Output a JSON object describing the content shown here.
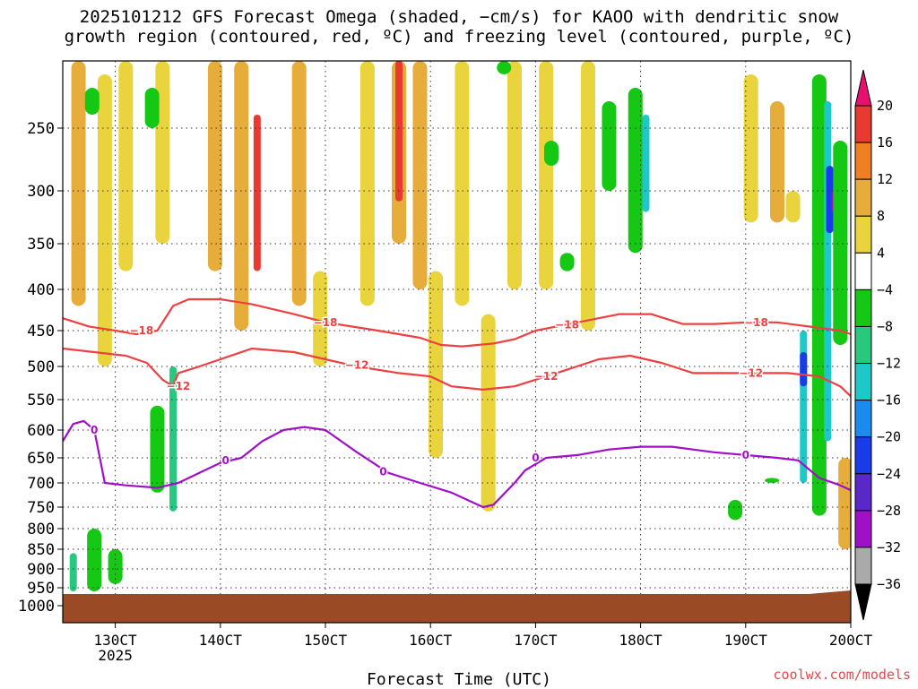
{
  "title_line1": "2025101212 GFS Forecast Omega (shaded, −cm/s) for KAOO with dendritic snow",
  "title_line2": "growth region (contoured, red, ºC) and freezing level (contoured, purple, ºC)",
  "credit": "coolwx.com/models",
  "chart_data": {
    "type": "heatmap",
    "title": "2025101212 GFS Forecast Omega (shaded, −cm/s) for KAOO with dendritic snow growth region (contoured, red, ºC) and freezing level (contoured, purple, ºC)",
    "xlabel": "Forecast Time (UTC)",
    "ylabel": "",
    "x_ticks": [
      "130CT",
      "140CT",
      "150CT",
      "160CT",
      "170CT",
      "180CT",
      "190CT",
      "200CT"
    ],
    "x_tick_day": [
      13,
      14,
      15,
      16,
      17,
      18,
      19,
      20
    ],
    "x_sublabel": "2025",
    "xlim_day": [
      12.5,
      20.0
    ],
    "y_ticks": [
      250,
      300,
      350,
      400,
      450,
      500,
      550,
      600,
      650,
      700,
      750,
      800,
      850,
      900,
      950,
      1000
    ],
    "ylim": [
      200,
      1000
    ],
    "colorbar": {
      "labels": [
        "20",
        "16",
        "12",
        "8",
        "4",
        "−4",
        "−8",
        "−12",
        "−16",
        "−20",
        "−24",
        "−28",
        "−32",
        "−36"
      ],
      "colors": [
        "#e8106f",
        "#e83a30",
        "#f07e22",
        "#e6ad3a",
        "#ead43d",
        "#ffffff",
        "#14c814",
        "#28c87f",
        "#1ec8c8",
        "#1a8cf0",
        "#1a3ce8",
        "#5a28c8",
        "#a010c8",
        "#aaaaaa",
        "#000000"
      ]
    },
    "contours": [
      {
        "name": "−18",
        "color": "#ee4040",
        "points": [
          [
            12.5,
            435
          ],
          [
            12.75,
            445
          ],
          [
            13.0,
            450
          ],
          [
            13.2,
            455
          ],
          [
            13.4,
            450
          ],
          [
            13.55,
            420
          ],
          [
            13.7,
            412
          ],
          [
            14.0,
            412
          ],
          [
            14.3,
            418
          ],
          [
            14.7,
            430
          ],
          [
            15.0,
            440
          ],
          [
            15.5,
            450
          ],
          [
            15.9,
            460
          ],
          [
            16.1,
            470
          ],
          [
            16.3,
            472
          ],
          [
            16.6,
            468
          ],
          [
            16.8,
            462
          ],
          [
            17.0,
            450
          ],
          [
            17.2,
            445
          ],
          [
            17.4,
            440
          ],
          [
            17.6,
            435
          ],
          [
            17.8,
            430
          ],
          [
            18.1,
            430
          ],
          [
            18.4,
            442
          ],
          [
            18.7,
            442
          ],
          [
            19.0,
            440
          ],
          [
            19.3,
            440
          ],
          [
            19.6,
            445
          ],
          [
            19.9,
            450
          ],
          [
            20.0,
            455
          ]
        ]
      },
      {
        "name": "−12",
        "color": "#ee4040",
        "points": [
          [
            12.5,
            475
          ],
          [
            12.8,
            480
          ],
          [
            13.1,
            485
          ],
          [
            13.3,
            495
          ],
          [
            13.45,
            520
          ],
          [
            13.55,
            530
          ],
          [
            13.6,
            510
          ],
          [
            13.8,
            500
          ],
          [
            14.0,
            490
          ],
          [
            14.3,
            475
          ],
          [
            14.7,
            480
          ],
          [
            15.0,
            490
          ],
          [
            15.3,
            500
          ],
          [
            15.7,
            510
          ],
          [
            16.0,
            515
          ],
          [
            16.2,
            530
          ],
          [
            16.5,
            535
          ],
          [
            16.8,
            530
          ],
          [
            17.0,
            520
          ],
          [
            17.2,
            510
          ],
          [
            17.6,
            490
          ],
          [
            17.9,
            485
          ],
          [
            18.2,
            495
          ],
          [
            18.5,
            510
          ],
          [
            18.8,
            510
          ],
          [
            19.1,
            510
          ],
          [
            19.4,
            510
          ],
          [
            19.7,
            515
          ],
          [
            19.9,
            530
          ],
          [
            20.0,
            545
          ]
        ]
      },
      {
        "name": "0",
        "color": "#a010c8",
        "points": [
          [
            12.5,
            620
          ],
          [
            12.6,
            590
          ],
          [
            12.7,
            585
          ],
          [
            12.8,
            600
          ],
          [
            12.9,
            700
          ],
          [
            13.1,
            705
          ],
          [
            13.4,
            710
          ],
          [
            13.6,
            700
          ],
          [
            13.8,
            680
          ],
          [
            14.0,
            660
          ],
          [
            14.2,
            650
          ],
          [
            14.4,
            620
          ],
          [
            14.6,
            600
          ],
          [
            14.8,
            595
          ],
          [
            15.0,
            600
          ],
          [
            15.3,
            640
          ],
          [
            15.6,
            680
          ],
          [
            15.9,
            700
          ],
          [
            16.2,
            720
          ],
          [
            16.5,
            750
          ],
          [
            16.6,
            745
          ],
          [
            16.8,
            700
          ],
          [
            16.9,
            675
          ],
          [
            17.1,
            650
          ],
          [
            17.4,
            645
          ],
          [
            17.7,
            635
          ],
          [
            18.0,
            630
          ],
          [
            18.3,
            630
          ],
          [
            18.7,
            640
          ],
          [
            19.0,
            645
          ],
          [
            19.3,
            650
          ],
          [
            19.5,
            655
          ],
          [
            19.7,
            690
          ],
          [
            19.9,
            705
          ],
          [
            20.0,
            715
          ]
        ]
      }
    ],
    "contour_labels": [
      {
        "text": "−18",
        "day": 13.25,
        "p": 450,
        "color": "#ee4040"
      },
      {
        "text": "−18",
        "day": 15.0,
        "p": 440,
        "color": "#ee4040"
      },
      {
        "text": "−18",
        "day": 17.3,
        "p": 443,
        "color": "#ee4040"
      },
      {
        "text": "−18",
        "day": 19.1,
        "p": 440,
        "color": "#ee4040"
      },
      {
        "text": "−12",
        "day": 13.6,
        "p": 530,
        "color": "#ee4040"
      },
      {
        "text": "−12",
        "day": 15.3,
        "p": 498,
        "color": "#ee4040"
      },
      {
        "text": "−12",
        "day": 17.1,
        "p": 515,
        "color": "#ee4040"
      },
      {
        "text": "−12",
        "day": 19.05,
        "p": 510,
        "color": "#ee4040"
      },
      {
        "text": "0",
        "day": 12.8,
        "p": 600,
        "color": "#a010c8"
      },
      {
        "text": "0",
        "day": 14.05,
        "p": 655,
        "color": "#a010c8"
      },
      {
        "text": "0",
        "day": 15.55,
        "p": 678,
        "color": "#a010c8"
      },
      {
        "text": "0",
        "day": 17.0,
        "p": 650,
        "color": "#a010c8"
      },
      {
        "text": "0",
        "day": 19.0,
        "p": 645,
        "color": "#a010c8"
      }
    ],
    "omega_regions": [
      {
        "day": 12.65,
        "p0": 200,
        "p1": 420,
        "level": 8
      },
      {
        "day": 12.9,
        "p0": 210,
        "p1": 500,
        "level": 4
      },
      {
        "day": 13.1,
        "p0": 200,
        "p1": 380,
        "level": 4
      },
      {
        "day": 13.45,
        "p0": 200,
        "p1": 350,
        "level": 4
      },
      {
        "day": 13.95,
        "p0": 200,
        "p1": 380,
        "level": 8
      },
      {
        "day": 14.35,
        "p0": 240,
        "p1": 380,
        "level": 16
      },
      {
        "day": 14.2,
        "p0": 200,
        "p1": 450,
        "level": 8
      },
      {
        "day": 14.75,
        "p0": 200,
        "p1": 420,
        "level": 8
      },
      {
        "day": 14.95,
        "p0": 380,
        "p1": 500,
        "level": 4
      },
      {
        "day": 15.4,
        "p0": 200,
        "p1": 420,
        "level": 4
      },
      {
        "day": 15.7,
        "p0": 200,
        "p1": 350,
        "level": 8
      },
      {
        "day": 15.7,
        "p0": 200,
        "p1": 310,
        "level": 16
      },
      {
        "day": 15.9,
        "p0": 200,
        "p1": 400,
        "level": 8
      },
      {
        "day": 16.05,
        "p0": 380,
        "p1": 650,
        "level": 4
      },
      {
        "day": 16.3,
        "p0": 200,
        "p1": 420,
        "level": 4
      },
      {
        "day": 16.55,
        "p0": 430,
        "p1": 760,
        "level": 4
      },
      {
        "day": 16.8,
        "p0": 200,
        "p1": 400,
        "level": 4
      },
      {
        "day": 17.1,
        "p0": 200,
        "p1": 400,
        "level": 4
      },
      {
        "day": 17.5,
        "p0": 200,
        "p1": 450,
        "level": 4
      },
      {
        "day": 19.05,
        "p0": 210,
        "p1": 330,
        "level": 4
      },
      {
        "day": 19.3,
        "p0": 230,
        "p1": 330,
        "level": 8
      },
      {
        "day": 19.45,
        "p0": 300,
        "p1": 330,
        "level": 4
      },
      {
        "day": 12.6,
        "p0": 860,
        "p1": 960,
        "level": -12
      },
      {
        "day": 12.8,
        "p0": 800,
        "p1": 960,
        "level": -8
      },
      {
        "day": 13.0,
        "p0": 850,
        "p1": 940,
        "level": -8
      },
      {
        "day": 13.55,
        "p0": 500,
        "p1": 760,
        "level": -12
      },
      {
        "day": 13.4,
        "p0": 560,
        "p1": 720,
        "level": -8
      },
      {
        "day": 12.78,
        "p0": 220,
        "p1": 240,
        "level": -8
      },
      {
        "day": 13.35,
        "p0": 220,
        "p1": 250,
        "level": -8
      },
      {
        "day": 16.7,
        "p0": 200,
        "p1": 210,
        "level": -4
      },
      {
        "day": 17.15,
        "p0": 260,
        "p1": 280,
        "level": -8
      },
      {
        "day": 17.7,
        "p0": 230,
        "p1": 300,
        "level": -8
      },
      {
        "day": 17.95,
        "p0": 220,
        "p1": 360,
        "level": -8
      },
      {
        "day": 18.05,
        "p0": 240,
        "p1": 320,
        "level": -16
      },
      {
        "day": 19.7,
        "p0": 210,
        "p1": 770,
        "level": -8
      },
      {
        "day": 19.78,
        "p0": 230,
        "p1": 620,
        "level": -16
      },
      {
        "day": 19.8,
        "p0": 280,
        "p1": 340,
        "level": -24
      },
      {
        "day": 19.85,
        "p0": 300,
        "p1": 320,
        "level": -28
      },
      {
        "day": 19.55,
        "p0": 450,
        "p1": 700,
        "level": -16
      },
      {
        "day": 19.55,
        "p0": 480,
        "p1": 530,
        "level": -24
      },
      {
        "day": 19.9,
        "p0": 260,
        "p1": 470,
        "level": -8
      },
      {
        "day": 18.9,
        "p0": 735,
        "p1": 780,
        "level": -8
      },
      {
        "day": 19.25,
        "p0": 690,
        "p1": 700,
        "level": -8
      },
      {
        "day": 19.95,
        "p0": 650,
        "p1": 850,
        "level": 8
      },
      {
        "day": 17.3,
        "p0": 360,
        "p1": 380,
        "level": -8
      }
    ],
    "ground_pressure": 955
  }
}
